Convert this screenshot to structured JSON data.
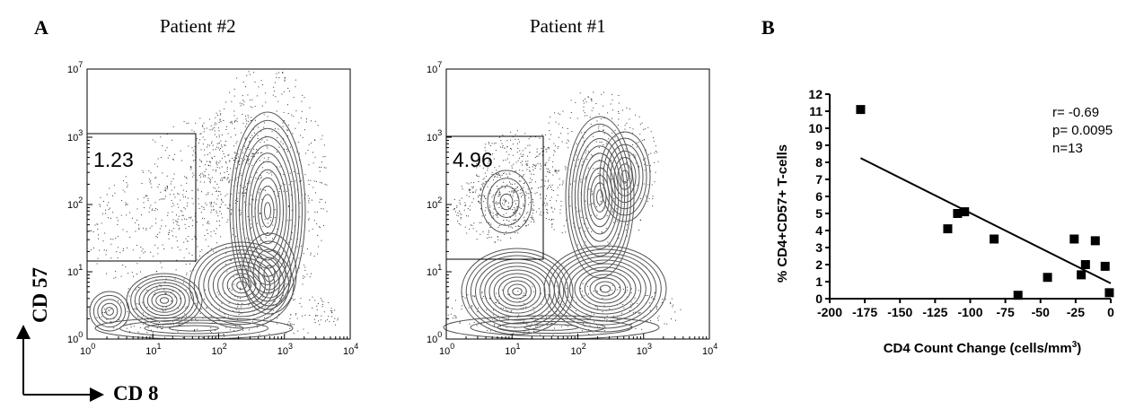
{
  "panel_a": {
    "letter": "A",
    "plots": [
      {
        "title": "Patient #2",
        "gate_value": "1.23"
      },
      {
        "title": "Patient #1",
        "gate_value": "4.96"
      }
    ],
    "tick_base": "10",
    "x_exponents": [
      "0",
      "1",
      "2",
      "3",
      "4"
    ],
    "y_exponents": [
      "0",
      "1",
      "2",
      "3",
      "7"
    ],
    "y_axis_word": "CD 57",
    "x_axis_word": "CD 8"
  },
  "panel_b": {
    "letter": "B"
  },
  "chart_data": {
    "type": "scatter",
    "xlabel": "CD4 Count Change (cells/mm3)",
    "ylabel": "% CD4+CD57+ T-cells",
    "xlim": [
      -200,
      0
    ],
    "ylim": [
      0,
      12
    ],
    "xticks": [
      "-200",
      "-175",
      "-150",
      "-125",
      "-100",
      "-75",
      "-50",
      "-25",
      "0"
    ],
    "yticks": [
      "0",
      "1",
      "2",
      "3",
      "4",
      "5",
      "6",
      "7",
      "8",
      "9",
      "10",
      "11",
      "12"
    ],
    "points": [
      {
        "x": -178,
        "y": 11.1
      },
      {
        "x": -116,
        "y": 4.1
      },
      {
        "x": -109,
        "y": 5.0
      },
      {
        "x": -104,
        "y": 5.1
      },
      {
        "x": -83,
        "y": 3.5
      },
      {
        "x": -66,
        "y": 0.2
      },
      {
        "x": -45,
        "y": 1.25
      },
      {
        "x": -26,
        "y": 3.5
      },
      {
        "x": -21,
        "y": 1.4
      },
      {
        "x": -18,
        "y": 2.0
      },
      {
        "x": -11,
        "y": 3.4
      },
      {
        "x": -4,
        "y": 1.9
      },
      {
        "x": -1,
        "y": 0.35
      }
    ],
    "trendline": {
      "x": [
        -178,
        0
      ],
      "y": [
        8.25,
        0.9
      ]
    },
    "annotations": [
      "r= -0.69",
      "p= 0.0095",
      "n=13"
    ]
  }
}
